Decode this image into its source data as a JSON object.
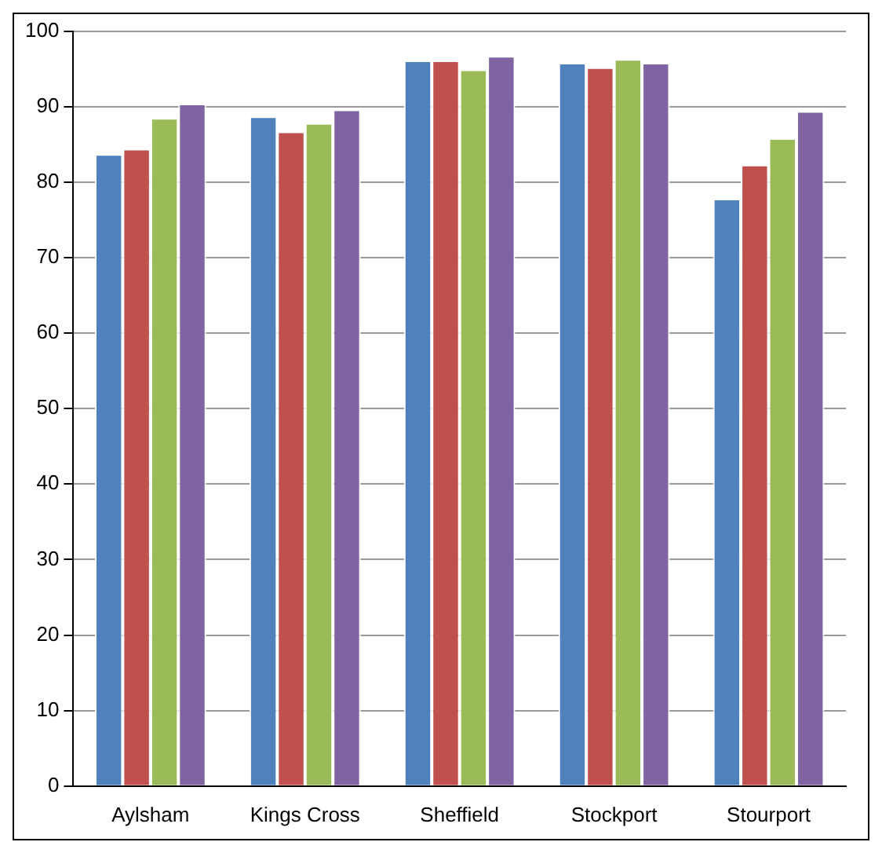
{
  "chart_data": {
    "type": "bar",
    "categories": [
      "Aylsham",
      "Kings Cross",
      "Sheffield",
      "Stockport",
      "Stourport"
    ],
    "series": [
      {
        "color": "#4f81bd",
        "values": [
          83.7,
          88.7,
          96.1,
          95.8,
          77.8
        ]
      },
      {
        "color": "#c0504d",
        "values": [
          84.4,
          86.7,
          96.1,
          95.2,
          82.3
        ]
      },
      {
        "color": "#9bbb59",
        "values": [
          88.5,
          87.8,
          94.9,
          96.3,
          85.8
        ]
      },
      {
        "color": "#8064a2",
        "values": [
          90.4,
          89.6,
          96.7,
          95.8,
          89.4
        ]
      }
    ],
    "ylim": [
      0,
      100
    ],
    "yticks": [
      0,
      10,
      20,
      30,
      40,
      50,
      60,
      70,
      80,
      90,
      100
    ],
    "grid": "y",
    "legend": false
  }
}
